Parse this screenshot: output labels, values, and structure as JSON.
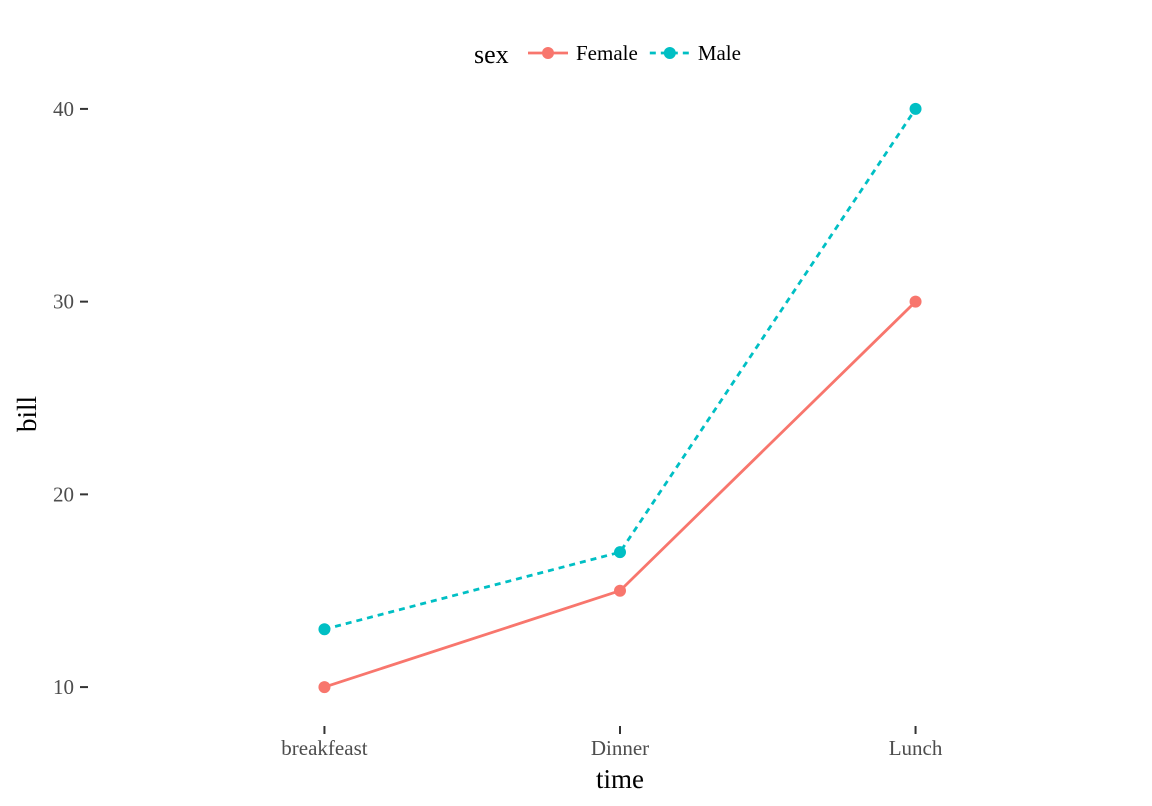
{
  "chart_data": {
    "type": "line",
    "categories": [
      "breakfeast",
      "Dinner",
      "Lunch"
    ],
    "series": [
      {
        "name": "Female",
        "values": [
          10,
          15,
          30
        ],
        "color": "#F8766D",
        "linestyle": "solid"
      },
      {
        "name": "Male",
        "values": [
          13,
          17,
          40
        ],
        "color": "#00BFC4",
        "linestyle": "dashed"
      }
    ],
    "xlabel": "time",
    "ylabel": "bill",
    "ylim": [
      8.5,
      41.5
    ],
    "yticks": [
      10,
      20,
      30,
      40
    ],
    "legend": {
      "title": "sex",
      "position": "top"
    },
    "grid": false
  }
}
